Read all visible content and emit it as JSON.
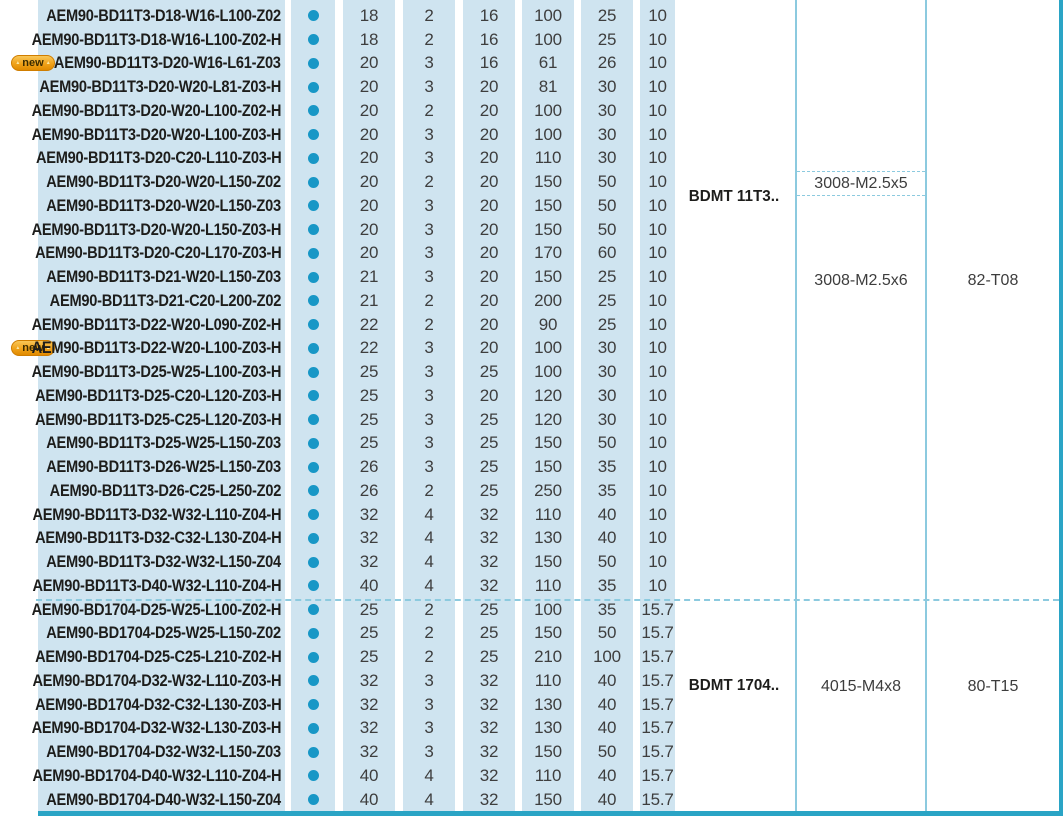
{
  "colors": {
    "table_background": "#cfe4f0",
    "stock_dot": "#1897c6",
    "grid_light_blue": "#8ccadf",
    "accent_teal": "#2aa4c5",
    "code_text": "#1d1d1b",
    "number_text": "#3e3e3e",
    "badge_orange": "#f0a21a"
  },
  "table": {
    "new_badge_label": "new",
    "stock_dot_icon": "filled-circle",
    "top_cutoff_value": "10",
    "sections": [
      {
        "insert": "BDMT 11T3..",
        "screw_short": "3008-M2.5x5",
        "screw": "3008-M2.5x6",
        "key": "82-T08",
        "rows": [
          {
            "code": "AEM90-BD11T3-D18-W16-L100-Z02",
            "new": false,
            "stock": true,
            "values": [
              "18",
              "2",
              "16",
              "100",
              "25",
              "10"
            ]
          },
          {
            "code": "AEM90-BD11T3-D18-W16-L100-Z02-H",
            "new": false,
            "stock": true,
            "values": [
              "18",
              "2",
              "16",
              "100",
              "25",
              "10"
            ]
          },
          {
            "code": "AEM90-BD11T3-D20-W16-L61-Z03",
            "new": true,
            "stock": true,
            "values": [
              "20",
              "3",
              "16",
              "61",
              "26",
              "10"
            ]
          },
          {
            "code": "AEM90-BD11T3-D20-W20-L81-Z03-H",
            "new": false,
            "stock": true,
            "values": [
              "20",
              "3",
              "20",
              "81",
              "30",
              "10"
            ]
          },
          {
            "code": "AEM90-BD11T3-D20-W20-L100-Z02-H",
            "new": false,
            "stock": true,
            "values": [
              "20",
              "2",
              "20",
              "100",
              "30",
              "10"
            ]
          },
          {
            "code": "AEM90-BD11T3-D20-W20-L100-Z03-H",
            "new": false,
            "stock": true,
            "values": [
              "20",
              "3",
              "20",
              "100",
              "30",
              "10"
            ]
          },
          {
            "code": "AEM90-BD11T3-D20-C20-L110-Z03-H",
            "new": false,
            "stock": true,
            "values": [
              "20",
              "3",
              "20",
              "110",
              "30",
              "10"
            ]
          },
          {
            "code": "AEM90-BD11T3-D20-W20-L150-Z02",
            "new": false,
            "stock": true,
            "values": [
              "20",
              "2",
              "20",
              "150",
              "50",
              "10"
            ]
          },
          {
            "code": "AEM90-BD11T3-D20-W20-L150-Z03",
            "new": false,
            "stock": true,
            "values": [
              "20",
              "3",
              "20",
              "150",
              "50",
              "10"
            ]
          },
          {
            "code": "AEM90-BD11T3-D20-W20-L150-Z03-H",
            "new": false,
            "stock": true,
            "values": [
              "20",
              "3",
              "20",
              "150",
              "50",
              "10"
            ]
          },
          {
            "code": "AEM90-BD11T3-D20-C20-L170-Z03-H",
            "new": false,
            "stock": true,
            "values": [
              "20",
              "3",
              "20",
              "170",
              "60",
              "10"
            ]
          },
          {
            "code": "AEM90-BD11T3-D21-W20-L150-Z03",
            "new": false,
            "stock": true,
            "values": [
              "21",
              "3",
              "20",
              "150",
              "25",
              "10"
            ]
          },
          {
            "code": "AEM90-BD11T3-D21-C20-L200-Z02",
            "new": false,
            "stock": true,
            "values": [
              "21",
              "2",
              "20",
              "200",
              "25",
              "10"
            ]
          },
          {
            "code": "AEM90-BD11T3-D22-W20-L090-Z02-H",
            "new": false,
            "stock": true,
            "values": [
              "22",
              "2",
              "20",
              "90",
              "25",
              "10"
            ]
          },
          {
            "code": "AEM90-BD11T3-D22-W20-L100-Z03-H",
            "new": true,
            "stock": true,
            "values": [
              "22",
              "3",
              "20",
              "100",
              "30",
              "10"
            ]
          },
          {
            "code": "AEM90-BD11T3-D25-W25-L100-Z03-H",
            "new": false,
            "stock": true,
            "values": [
              "25",
              "3",
              "25",
              "100",
              "30",
              "10"
            ]
          },
          {
            "code": "AEM90-BD11T3-D25-C20-L120-Z03-H",
            "new": false,
            "stock": true,
            "values": [
              "25",
              "3",
              "20",
              "120",
              "30",
              "10"
            ]
          },
          {
            "code": "AEM90-BD11T3-D25-C25-L120-Z03-H",
            "new": false,
            "stock": true,
            "values": [
              "25",
              "3",
              "25",
              "120",
              "30",
              "10"
            ]
          },
          {
            "code": "AEM90-BD11T3-D25-W25-L150-Z03",
            "new": false,
            "stock": true,
            "values": [
              "25",
              "3",
              "25",
              "150",
              "50",
              "10"
            ]
          },
          {
            "code": "AEM90-BD11T3-D26-W25-L150-Z03",
            "new": false,
            "stock": true,
            "values": [
              "26",
              "3",
              "25",
              "150",
              "35",
              "10"
            ]
          },
          {
            "code": "AEM90-BD11T3-D26-C25-L250-Z02",
            "new": false,
            "stock": true,
            "values": [
              "26",
              "2",
              "25",
              "250",
              "35",
              "10"
            ]
          },
          {
            "code": "AEM90-BD11T3-D32-W32-L110-Z04-H",
            "new": false,
            "stock": true,
            "values": [
              "32",
              "4",
              "32",
              "110",
              "40",
              "10"
            ]
          },
          {
            "code": "AEM90-BD11T3-D32-C32-L130-Z04-H",
            "new": false,
            "stock": true,
            "values": [
              "32",
              "4",
              "32",
              "130",
              "40",
              "10"
            ]
          },
          {
            "code": "AEM90-BD11T3-D32-W32-L150-Z04",
            "new": false,
            "stock": true,
            "values": [
              "32",
              "4",
              "32",
              "150",
              "50",
              "10"
            ]
          },
          {
            "code": "AEM90-BD11T3-D40-W32-L110-Z04-H",
            "new": false,
            "stock": true,
            "values": [
              "40",
              "4",
              "32",
              "110",
              "35",
              "10"
            ]
          }
        ]
      },
      {
        "insert": "BDMT 1704..",
        "screw": "4015-M4x8",
        "key": "80-T15",
        "rows": [
          {
            "code": "AEM90-BD1704-D25-W25-L100-Z02-H",
            "new": false,
            "stock": true,
            "values": [
              "25",
              "2",
              "25",
              "100",
              "35",
              "15.7"
            ]
          },
          {
            "code": "AEM90-BD1704-D25-W25-L150-Z02",
            "new": false,
            "stock": true,
            "values": [
              "25",
              "2",
              "25",
              "150",
              "50",
              "15.7"
            ]
          },
          {
            "code": "AEM90-BD1704-D25-C25-L210-Z02-H",
            "new": false,
            "stock": true,
            "values": [
              "25",
              "2",
              "25",
              "210",
              "100",
              "15.7"
            ]
          },
          {
            "code": "AEM90-BD1704-D32-W32-L110-Z03-H",
            "new": false,
            "stock": true,
            "values": [
              "32",
              "3",
              "32",
              "110",
              "40",
              "15.7"
            ]
          },
          {
            "code": "AEM90-BD1704-D32-C32-L130-Z03-H",
            "new": false,
            "stock": true,
            "values": [
              "32",
              "3",
              "32",
              "130",
              "40",
              "15.7"
            ]
          },
          {
            "code": "AEM90-BD1704-D32-W32-L130-Z03-H",
            "new": false,
            "stock": true,
            "values": [
              "32",
              "3",
              "32",
              "130",
              "40",
              "15.7"
            ]
          },
          {
            "code": "AEM90-BD1704-D32-W32-L150-Z03",
            "new": false,
            "stock": true,
            "values": [
              "32",
              "3",
              "32",
              "150",
              "50",
              "15.7"
            ]
          },
          {
            "code": "AEM90-BD1704-D40-W32-L110-Z04-H",
            "new": false,
            "stock": true,
            "values": [
              "40",
              "4",
              "32",
              "110",
              "40",
              "15.7"
            ]
          },
          {
            "code": "AEM90-BD1704-D40-W32-L150-Z04",
            "new": false,
            "stock": true,
            "values": [
              "40",
              "4",
              "32",
              "150",
              "40",
              "15.7"
            ]
          }
        ]
      }
    ]
  }
}
